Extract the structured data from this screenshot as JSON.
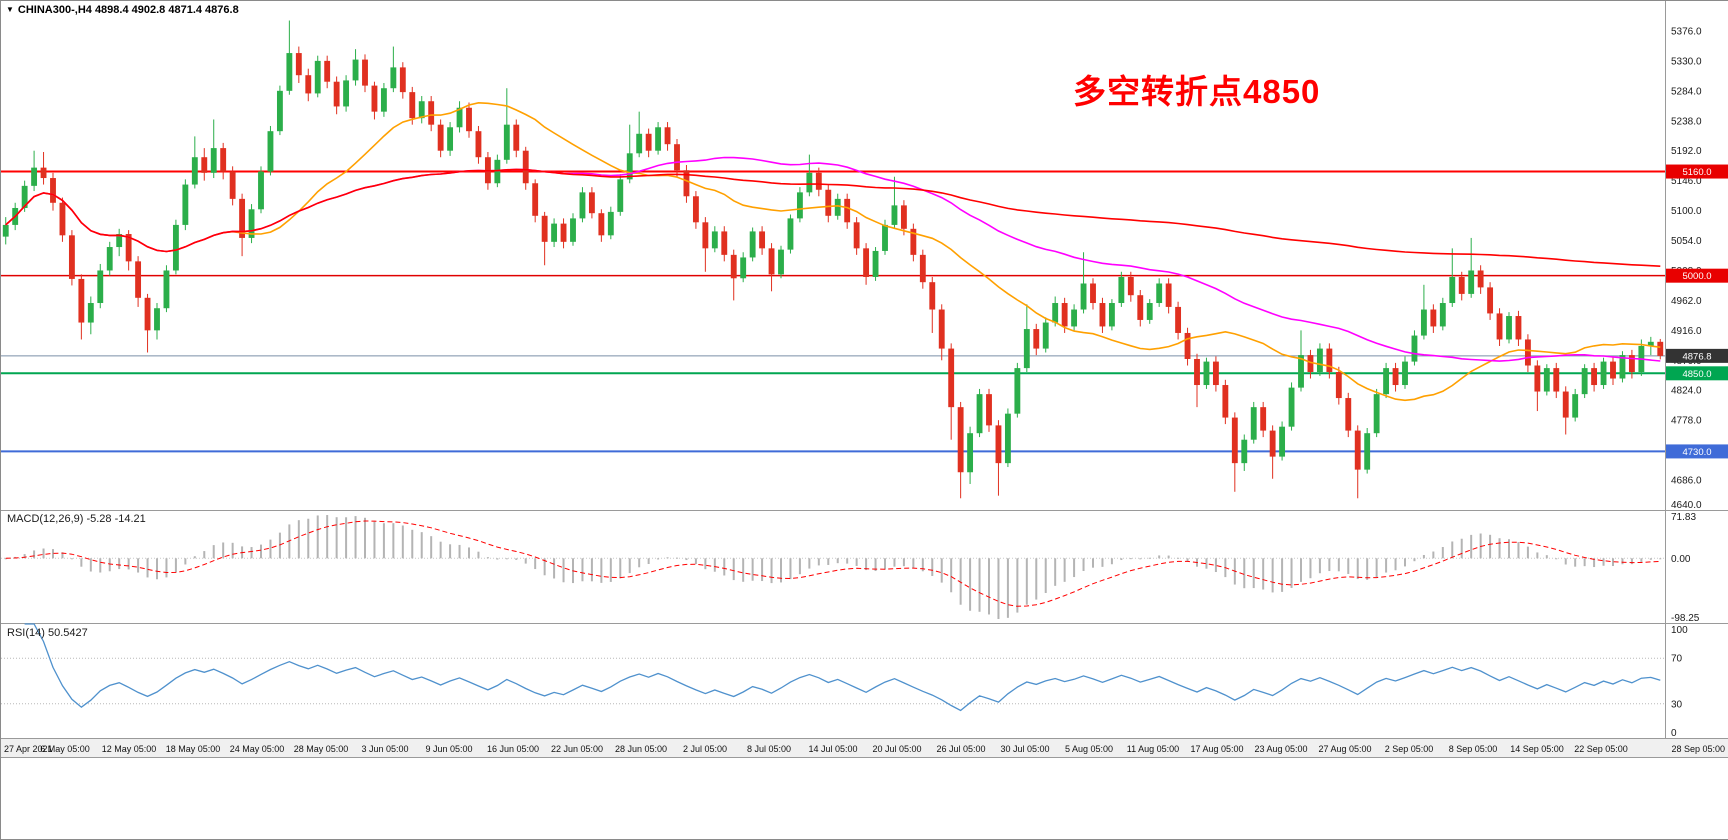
{
  "header": {
    "collapse_icon": "▼",
    "symbol_label": "CHINA300-,H4 4898.4 4902.8 4871.4 4876.8"
  },
  "annotation": {
    "text": "多空转折点4850",
    "color": "#FF0000"
  },
  "colors": {
    "background": "#FFFFFF",
    "candle_up": "#2BAE4A",
    "candle_down": "#E03020",
    "panel_border": "#9A9A9A",
    "time_strip_bg": "#F0F0F0",
    "grid_dotted": "#C8C8C8"
  },
  "chart_data": {
    "type": "candlestick",
    "title": "CHINA300-,H4",
    "symbol": "CHINA300-",
    "timeframe": "H4",
    "current_ohlc": {
      "open": 4898.4,
      "high": 4902.8,
      "low": 4871.4,
      "close": 4876.8
    },
    "y_axis": {
      "min": 4640,
      "max": 5422,
      "ticks": [
        5376,
        5330,
        5284,
        5238,
        5192,
        5146,
        5100,
        5054,
        5008,
        4962,
        4916,
        4870,
        4824,
        4778,
        4732,
        4686,
        4640
      ]
    },
    "x_labels": [
      "27 Apr 2021",
      "6 May 05:00",
      "12 May 05:00",
      "18 May 05:00",
      "24 May 05:00",
      "28 May 05:00",
      "3 Jun 05:00",
      "9 Jun 05:00",
      "16 Jun 05:00",
      "22 Jun 05:00",
      "28 Jun 05:00",
      "2 Jul 05:00",
      "8 Jul 05:00",
      "14 Jul 05:00",
      "20 Jul 05:00",
      "26 Jul 05:00",
      "30 Jul 05:00",
      "5 Aug 05:00",
      "11 Aug 05:00",
      "17 Aug 05:00",
      "23 Aug 05:00",
      "27 Aug 05:00",
      "2 Sep 05:00",
      "8 Sep 05:00",
      "14 Sep 05:00",
      "22 Sep 05:00",
      "28 Sep 05:00"
    ],
    "horizontal_lines": [
      {
        "price": 5160.0,
        "color": "#FF0000",
        "width": 2,
        "label": "5160.0",
        "label_bg": "#E80000"
      },
      {
        "price": 5000.0,
        "color": "#E00000",
        "width": 1.5,
        "label": "5000.0",
        "label_bg": "#E80000"
      },
      {
        "price": 4876.8,
        "color": "#7A8FA6",
        "width": 1,
        "label": "4876.8",
        "label_bg": "#333333"
      },
      {
        "price": 4850.0,
        "color": "#00A651",
        "width": 2,
        "label": "4850.0",
        "label_bg": "#00A651"
      },
      {
        "price": 4730.0,
        "color": "#3F6BD8",
        "width": 2,
        "label": "4730.0",
        "label_bg": "#3F6BD8"
      }
    ],
    "moving_averages": [
      {
        "name": "ma-fast",
        "period": 24,
        "color": "#FFA000"
      },
      {
        "name": "ma-medium",
        "period": 60,
        "color": "#FF00FF"
      },
      {
        "name": "ma-slow",
        "period": 200,
        "color": "#FF0000"
      }
    ],
    "macd": {
      "label": "MACD(12,26,9) -5.28 -14.21",
      "params": [
        12,
        26,
        9
      ],
      "value": -5.28,
      "signal_value": -14.21,
      "range": [
        -98.25,
        71.83
      ],
      "ticks": [
        "71.83",
        "0.00",
        "-98.25"
      ],
      "histogram_color": "#B4B4B4",
      "signal_color": "#FF0000"
    },
    "rsi": {
      "label": "RSI(14) 50.5427",
      "period": 14,
      "value": 50.5427,
      "range": [
        0,
        100
      ],
      "levels": [
        70,
        30
      ],
      "ticks": [
        "100",
        "70",
        "30",
        "0"
      ],
      "line_color": "#4F91CD"
    },
    "ohlc": [
      [
        5060,
        5090,
        5048,
        5078
      ],
      [
        5078,
        5112,
        5070,
        5104
      ],
      [
        5104,
        5146,
        5098,
        5138
      ],
      [
        5138,
        5192,
        5130,
        5166
      ],
      [
        5166,
        5190,
        5140,
        5150
      ],
      [
        5150,
        5158,
        5100,
        5112
      ],
      [
        5112,
        5120,
        5052,
        5062
      ],
      [
        5062,
        5070,
        4985,
        4995
      ],
      [
        4995,
        5002,
        4902,
        4928
      ],
      [
        4928,
        4968,
        4910,
        4958
      ],
      [
        4958,
        5018,
        4950,
        5008
      ],
      [
        5008,
        5052,
        5000,
        5044
      ],
      [
        5044,
        5072,
        5030,
        5064
      ],
      [
        5064,
        5070,
        5008,
        5022
      ],
      [
        5022,
        5030,
        4952,
        4966
      ],
      [
        4966,
        4972,
        4882,
        4916
      ],
      [
        4916,
        4958,
        4902,
        4950
      ],
      [
        4950,
        5016,
        4944,
        5008
      ],
      [
        5008,
        5086,
        5002,
        5078
      ],
      [
        5078,
        5148,
        5070,
        5140
      ],
      [
        5140,
        5214,
        5134,
        5182
      ],
      [
        5182,
        5196,
        5146,
        5158
      ],
      [
        5158,
        5240,
        5150,
        5196
      ],
      [
        5196,
        5204,
        5148,
        5160
      ],
      [
        5160,
        5168,
        5108,
        5118
      ],
      [
        5118,
        5126,
        5030,
        5058
      ],
      [
        5058,
        5110,
        5050,
        5102
      ],
      [
        5102,
        5168,
        5096,
        5160
      ],
      [
        5160,
        5230,
        5154,
        5222
      ],
      [
        5222,
        5292,
        5216,
        5284
      ],
      [
        5284,
        5392,
        5278,
        5342
      ],
      [
        5342,
        5352,
        5296,
        5308
      ],
      [
        5308,
        5318,
        5268,
        5280
      ],
      [
        5280,
        5338,
        5274,
        5330
      ],
      [
        5330,
        5338,
        5288,
        5298
      ],
      [
        5298,
        5306,
        5248,
        5260
      ],
      [
        5260,
        5308,
        5252,
        5300
      ],
      [
        5300,
        5348,
        5292,
        5332
      ],
      [
        5332,
        5340,
        5282,
        5292
      ],
      [
        5292,
        5298,
        5240,
        5252
      ],
      [
        5252,
        5296,
        5244,
        5288
      ],
      [
        5288,
        5352,
        5282,
        5320
      ],
      [
        5320,
        5328,
        5272,
        5282
      ],
      [
        5282,
        5290,
        5232,
        5242
      ],
      [
        5242,
        5276,
        5234,
        5268
      ],
      [
        5268,
        5276,
        5222,
        5232
      ],
      [
        5232,
        5240,
        5182,
        5192
      ],
      [
        5192,
        5236,
        5184,
        5228
      ],
      [
        5228,
        5268,
        5220,
        5258
      ],
      [
        5258,
        5266,
        5212,
        5222
      ],
      [
        5222,
        5230,
        5172,
        5182
      ],
      [
        5182,
        5190,
        5132,
        5142
      ],
      [
        5142,
        5186,
        5136,
        5178
      ],
      [
        5178,
        5288,
        5172,
        5232
      ],
      [
        5232,
        5240,
        5182,
        5192
      ],
      [
        5192,
        5198,
        5132,
        5142
      ],
      [
        5142,
        5148,
        5082,
        5092
      ],
      [
        5092,
        5098,
        5016,
        5052
      ],
      [
        5052,
        5088,
        5044,
        5080
      ],
      [
        5080,
        5088,
        5042,
        5052
      ],
      [
        5052,
        5096,
        5046,
        5088
      ],
      [
        5088,
        5136,
        5082,
        5128
      ],
      [
        5128,
        5136,
        5088,
        5096
      ],
      [
        5096,
        5102,
        5052,
        5062
      ],
      [
        5062,
        5106,
        5056,
        5098
      ],
      [
        5098,
        5156,
        5092,
        5148
      ],
      [
        5148,
        5232,
        5142,
        5188
      ],
      [
        5188,
        5252,
        5182,
        5218
      ],
      [
        5218,
        5226,
        5182,
        5192
      ],
      [
        5192,
        5236,
        5186,
        5228
      ],
      [
        5228,
        5236,
        5192,
        5202
      ],
      [
        5202,
        5210,
        5152,
        5162
      ],
      [
        5162,
        5170,
        5112,
        5122
      ],
      [
        5122,
        5130,
        5072,
        5082
      ],
      [
        5082,
        5090,
        5006,
        5042
      ],
      [
        5042,
        5076,
        5036,
        5068
      ],
      [
        5068,
        5076,
        5022,
        5032
      ],
      [
        5032,
        5040,
        4962,
        4996
      ],
      [
        4996,
        5036,
        4990,
        5028
      ],
      [
        5028,
        5074,
        5022,
        5068
      ],
      [
        5068,
        5076,
        5032,
        5042
      ],
      [
        5042,
        5050,
        4976,
        5002
      ],
      [
        5002,
        5046,
        4996,
        5040
      ],
      [
        5040,
        5094,
        5034,
        5088
      ],
      [
        5088,
        5136,
        5082,
        5128
      ],
      [
        5128,
        5186,
        5122,
        5158
      ],
      [
        5158,
        5166,
        5122,
        5132
      ],
      [
        5132,
        5140,
        5082,
        5092
      ],
      [
        5092,
        5126,
        5086,
        5118
      ],
      [
        5118,
        5126,
        5072,
        5082
      ],
      [
        5082,
        5090,
        5032,
        5042
      ],
      [
        5042,
        5050,
        4986,
        4998
      ],
      [
        4998,
        5044,
        4992,
        5038
      ],
      [
        5038,
        5086,
        5032,
        5078
      ],
      [
        5078,
        5152,
        5072,
        5108
      ],
      [
        5108,
        5116,
        5062,
        5072
      ],
      [
        5072,
        5080,
        5022,
        5032
      ],
      [
        5032,
        5040,
        4980,
        4990
      ],
      [
        4990,
        4998,
        4912,
        4948
      ],
      [
        4948,
        4956,
        4870,
        4888
      ],
      [
        4888,
        4896,
        4748,
        4798
      ],
      [
        4798,
        4806,
        4658,
        4698
      ],
      [
        4698,
        4768,
        4680,
        4758
      ],
      [
        4758,
        4826,
        4752,
        4818
      ],
      [
        4818,
        4826,
        4760,
        4770
      ],
      [
        4770,
        4778,
        4662,
        4712
      ],
      [
        4712,
        4796,
        4706,
        4788
      ],
      [
        4788,
        4866,
        4782,
        4858
      ],
      [
        4858,
        4956,
        4852,
        4918
      ],
      [
        4918,
        4926,
        4878,
        4888
      ],
      [
        4888,
        4936,
        4882,
        4928
      ],
      [
        4928,
        4968,
        4922,
        4958
      ],
      [
        4958,
        4966,
        4912,
        4922
      ],
      [
        4922,
        4956,
        4916,
        4948
      ],
      [
        4948,
        5036,
        4942,
        4988
      ],
      [
        4988,
        4996,
        4948,
        4958
      ],
      [
        4958,
        4966,
        4912,
        4922
      ],
      [
        4922,
        4964,
        4916,
        4958
      ],
      [
        4958,
        5006,
        4952,
        4998
      ],
      [
        4998,
        5006,
        4960,
        4970
      ],
      [
        4970,
        4978,
        4922,
        4932
      ],
      [
        4932,
        4964,
        4926,
        4958
      ],
      [
        4958,
        4996,
        4952,
        4988
      ],
      [
        4988,
        4996,
        4942,
        4952
      ],
      [
        4952,
        4960,
        4902,
        4912
      ],
      [
        4912,
        4920,
        4862,
        4872
      ],
      [
        4872,
        4880,
        4798,
        4832
      ],
      [
        4832,
        4874,
        4826,
        4868
      ],
      [
        4868,
        4876,
        4822,
        4832
      ],
      [
        4832,
        4840,
        4772,
        4782
      ],
      [
        4782,
        4790,
        4668,
        4712
      ],
      [
        4712,
        4756,
        4700,
        4748
      ],
      [
        4748,
        4806,
        4742,
        4798
      ],
      [
        4798,
        4806,
        4752,
        4762
      ],
      [
        4762,
        4770,
        4688,
        4722
      ],
      [
        4722,
        4776,
        4716,
        4768
      ],
      [
        4768,
        4836,
        4762,
        4828
      ],
      [
        4828,
        4916,
        4822,
        4878
      ],
      [
        4878,
        4886,
        4842,
        4852
      ],
      [
        4852,
        4896,
        4846,
        4888
      ],
      [
        4888,
        4896,
        4842,
        4852
      ],
      [
        4852,
        4860,
        4802,
        4812
      ],
      [
        4812,
        4820,
        4752,
        4762
      ],
      [
        4762,
        4770,
        4658,
        4702
      ],
      [
        4702,
        4766,
        4696,
        4758
      ],
      [
        4758,
        4826,
        4752,
        4818
      ],
      [
        4818,
        4866,
        4812,
        4858
      ],
      [
        4858,
        4866,
        4822,
        4832
      ],
      [
        4832,
        4876,
        4826,
        4868
      ],
      [
        4868,
        4916,
        4862,
        4908
      ],
      [
        4908,
        4986,
        4902,
        4948
      ],
      [
        4948,
        4956,
        4912,
        4922
      ],
      [
        4922,
        4966,
        4916,
        4958
      ],
      [
        4958,
        5042,
        4952,
        4998
      ],
      [
        4998,
        5006,
        4962,
        4972
      ],
      [
        4972,
        5058,
        4966,
        5008
      ],
      [
        5008,
        5016,
        4972,
        4982
      ],
      [
        4982,
        4990,
        4932,
        4942
      ],
      [
        4942,
        4950,
        4892,
        4902
      ],
      [
        4902,
        4944,
        4896,
        4938
      ],
      [
        4938,
        4946,
        4892,
        4902
      ],
      [
        4902,
        4910,
        4852,
        4862
      ],
      [
        4862,
        4870,
        4792,
        4822
      ],
      [
        4822,
        4864,
        4816,
        4858
      ],
      [
        4858,
        4866,
        4812,
        4822
      ],
      [
        4822,
        4830,
        4756,
        4782
      ],
      [
        4782,
        4826,
        4776,
        4818
      ],
      [
        4818,
        4864,
        4812,
        4858
      ],
      [
        4858,
        4866,
        4822,
        4832
      ],
      [
        4832,
        4874,
        4826,
        4868
      ],
      [
        4868,
        4876,
        4832,
        4842
      ],
      [
        4842,
        4884,
        4836,
        4878
      ],
      [
        4878,
        4886,
        4842,
        4852
      ],
      [
        4852,
        4902,
        4846,
        4892
      ],
      [
        4892,
        4906,
        4878,
        4898.4
      ],
      [
        4898.4,
        4902.8,
        4871.4,
        4876.8
      ]
    ]
  }
}
